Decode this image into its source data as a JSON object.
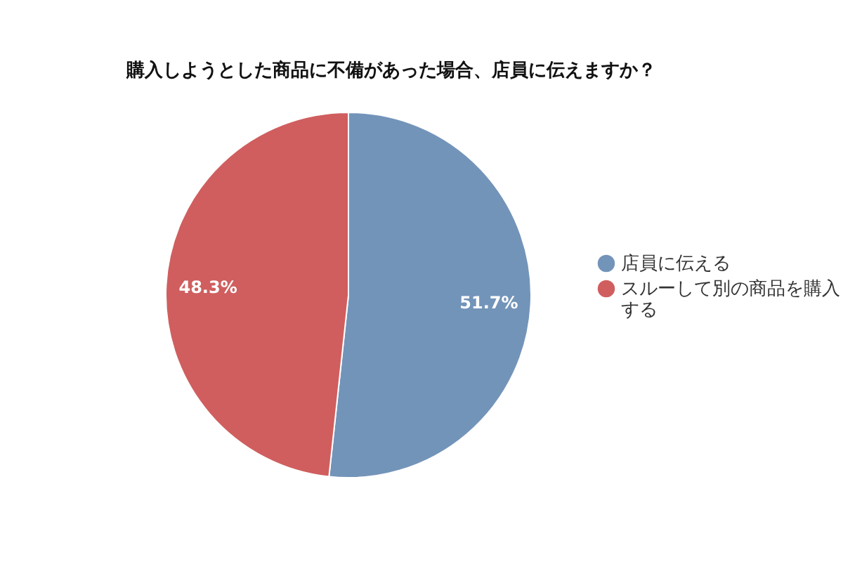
{
  "chart_data": {
    "type": "pie",
    "title": "購入しようとした商品に不備があった場合、店員に伝えますか？",
    "categories": [
      "店員に伝える",
      "スルーして別の商品を購入する"
    ],
    "values": [
      51.7,
      48.3
    ],
    "colors": [
      "#7394b9",
      "#d05e5e"
    ],
    "value_labels": [
      "51.7%",
      "48.3%"
    ],
    "legend": "right"
  }
}
